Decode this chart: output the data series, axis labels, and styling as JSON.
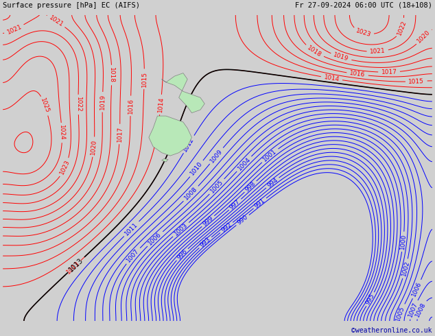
{
  "title_left": "Surface pressure [hPa] EC (AIFS)",
  "title_right": "Fr 27-09-2024 06:00 UTC (18+108)",
  "credit": "©weatheronline.co.uk",
  "bg_color": "#d0d0d0",
  "fig_width": 6.34,
  "fig_height": 4.9,
  "dpi": 100,
  "red_contour_color": "#ff0000",
  "blue_contour_color": "#0000ff",
  "black_contour_color": "#000000",
  "land_color": "#b8e8b8",
  "text_color_bottom": "#0000aa",
  "contour_linewidth": 0.7,
  "label_fontsize": 6.5
}
